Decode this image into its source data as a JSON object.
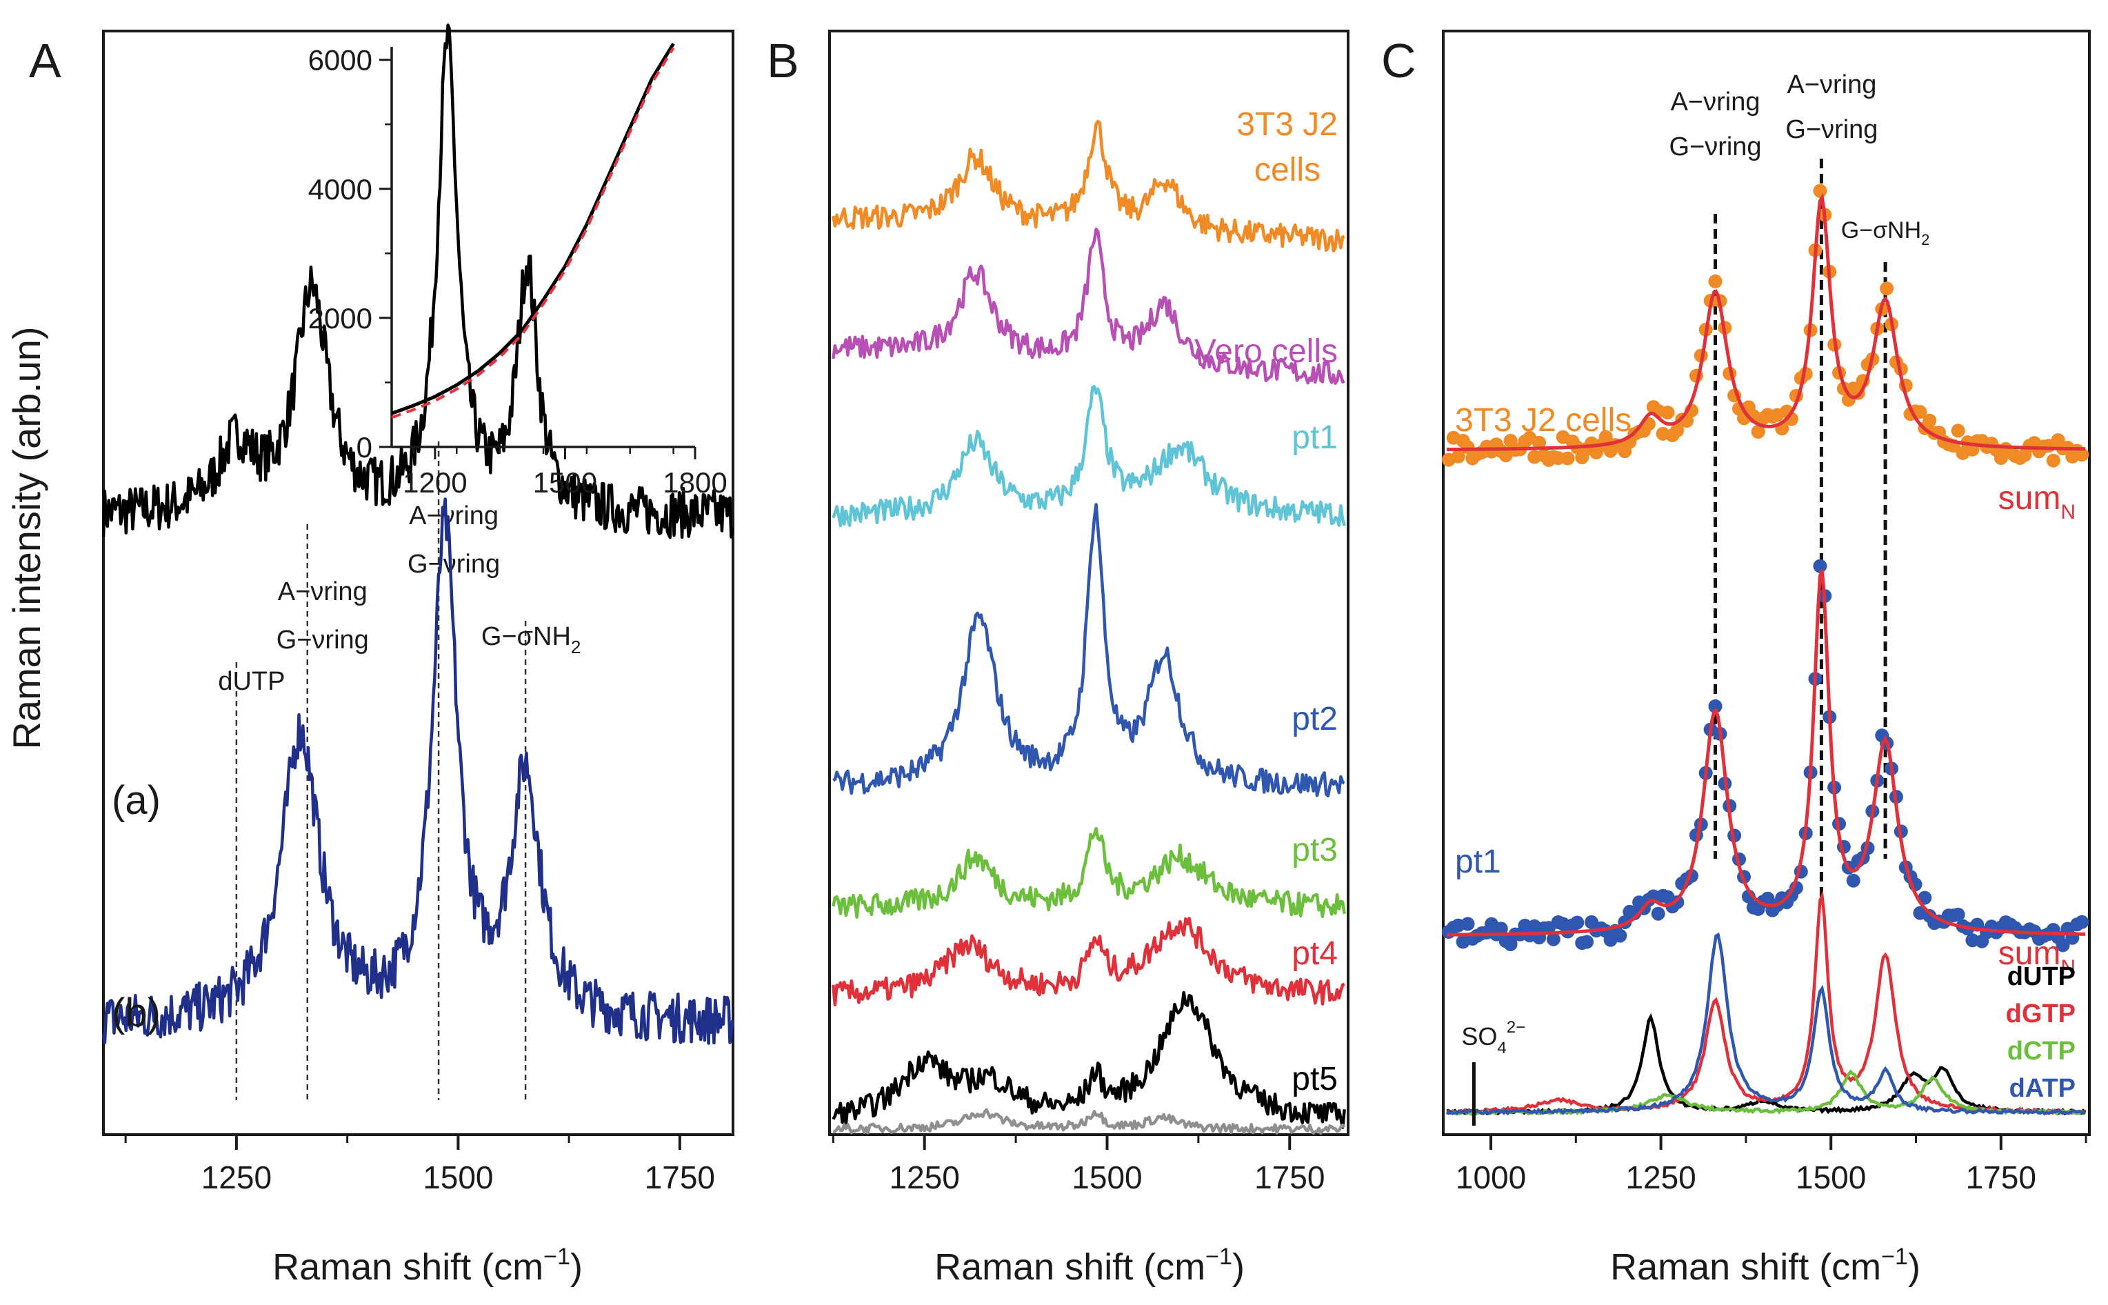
{
  "figure": {
    "y_axis_label": "Raman intensity (arb.un)",
    "x_axis_label_main": "Raman shift (cm",
    "x_axis_label_sup": "−1",
    "x_axis_label_close": ")"
  },
  "chart_data": [
    {
      "panel": "A",
      "type": "line",
      "xlim": [
        1100,
        1810
      ],
      "xticks": [
        1250,
        1500,
        1750
      ],
      "xtick_labels": [
        "1250",
        "1500",
        "1750"
      ],
      "series": [
        {
          "name": "(a)",
          "color": "#000000",
          "offset": 0.56,
          "peaks": [
            [
              1250,
              0.06,
              25
            ],
            [
              1335,
              0.2,
              22
            ],
            [
              1488,
              0.42,
              14
            ],
            [
              1578,
              0.22,
              14
            ]
          ],
          "slope": 0.0
        },
        {
          "name": "(b)",
          "color": "#1f2f8a",
          "offset": 0.1,
          "peaks": [
            [
              1322,
              0.26,
              26
            ],
            [
              1485,
              0.44,
              17
            ],
            [
              1576,
              0.22,
              20
            ]
          ],
          "slope": 0.0
        }
      ],
      "series_labels": [
        "(a)",
        "(b)"
      ],
      "annotations": [
        {
          "x": 1250,
          "line1": "dUTP",
          "line2": ""
        },
        {
          "x": 1330,
          "line1": "A−νring",
          "line2": "G−νring"
        },
        {
          "x": 1478,
          "line1": "A−νring",
          "line2": "G−νring"
        },
        {
          "x": 1576,
          "line1": "G−σNH",
          "sub": "2"
        }
      ],
      "inset": {
        "xlim": [
          1100,
          1800
        ],
        "ylim": [
          0,
          6200
        ],
        "xticks": [
          1200,
          1500,
          1800
        ],
        "xtick_labels": [
          "1200",
          "1500",
          "1800"
        ],
        "yticks": [
          0,
          2000,
          4000,
          6000
        ],
        "ytick_labels": [
          "0",
          "2000",
          "4000",
          "6000"
        ],
        "curve_x": [
          1100,
          1150,
          1200,
          1250,
          1300,
          1350,
          1400,
          1450,
          1500,
          1550,
          1600,
          1650,
          1700,
          1750
        ],
        "curve_y": [
          520,
          640,
          780,
          960,
          1180,
          1460,
          1800,
          2280,
          2800,
          3450,
          4200,
          4950,
          5700,
          6250
        ],
        "fit_color": "#e8323c",
        "data_color": "#000000"
      }
    },
    {
      "panel": "B",
      "type": "line",
      "xlim": [
        1120,
        1830
      ],
      "xticks": [
        1250,
        1500,
        1750
      ],
      "xtick_labels": [
        "1250",
        "1500",
        "1750"
      ],
      "series": [
        {
          "name": "3T3 J2",
          "name2": "cells",
          "color": "#f08a24",
          "offset": 0.83,
          "peaks": [
            [
              1320,
              0.06,
              30
            ],
            [
              1486,
              0.09,
              16
            ],
            [
              1580,
              0.045,
              25
            ]
          ],
          "slope": -0.02
        },
        {
          "name": "Vero cells",
          "color": "#b84fb4",
          "offset": 0.712,
          "peaks": [
            [
              1320,
              0.075,
              28
            ],
            [
              1484,
              0.11,
              14
            ],
            [
              1578,
              0.055,
              25
            ]
          ],
          "slope": -0.025
        },
        {
          "name": "pt1",
          "color": "#5ec4d6",
          "offset": 0.56,
          "peaks": [
            [
              1320,
              0.065,
              30
            ],
            [
              1484,
              0.105,
              16
            ],
            [
              1600,
              0.06,
              45
            ]
          ],
          "slope": 0.0
        },
        {
          "name": "pt2",
          "color": "#2f57b0",
          "offset": 0.315,
          "peaks": [
            [
              1325,
              0.15,
              28
            ],
            [
              1484,
              0.24,
              14
            ],
            [
              1578,
              0.115,
              26
            ]
          ],
          "slope": 0.0
        },
        {
          "name": "pt3",
          "color": "#6cbf3c",
          "offset": 0.205,
          "peaks": [
            [
              1320,
              0.045,
              30
            ],
            [
              1484,
              0.065,
              14
            ],
            [
              1600,
              0.045,
              45
            ]
          ],
          "slope": 0.0
        },
        {
          "name": "pt4",
          "color": "#e0303a",
          "offset": 0.125,
          "peaks": [
            [
              1310,
              0.045,
              40
            ],
            [
              1484,
              0.04,
              14
            ],
            [
              1600,
              0.065,
              50
            ]
          ],
          "slope": 0.0
        },
        {
          "name": "pt5",
          "color": "#000000",
          "offset": 0.012,
          "peaks": [
            [
              1250,
              0.05,
              40
            ],
            [
              1340,
              0.03,
              40
            ],
            [
              1484,
              0.03,
              12
            ],
            [
              1610,
              0.11,
              45
            ]
          ],
          "slope": 0.0
        },
        {
          "name": "",
          "color": "#8f8f8f",
          "offset": 0.005,
          "peaks": [
            [
              1330,
              0.015,
              30
            ],
            [
              1484,
              0.015,
              12
            ],
            [
              1575,
              0.01,
              25
            ]
          ],
          "slope": 0.0
        }
      ]
    },
    {
      "panel": "C",
      "type": "line",
      "xlim": [
        930,
        1880
      ],
      "xticks": [
        1000,
        1250,
        1500,
        1750
      ],
      "xtick_labels": [
        "1000",
        "1250",
        "1500",
        "1750"
      ],
      "peak_lines": [
        1330,
        1486,
        1580
      ],
      "annotations": [
        {
          "x": 1330,
          "line1": "A−νring",
          "line2": "G−νring"
        },
        {
          "x": 1486,
          "line1": "A−νring",
          "line2": "G−νring"
        },
        {
          "x": 1580,
          "line1": "G−σNH",
          "sub": "2"
        }
      ],
      "upper": [
        {
          "name": "3T3 J2 cells",
          "color": "#f08a24",
          "fit_label": "sum",
          "fit_sub": "N",
          "offset": 0.62,
          "peaks": [
            [
              1235,
              0.025,
              20
            ],
            [
              1330,
              0.14,
              22
            ],
            [
              1486,
              0.22,
              16
            ],
            [
              1580,
              0.13,
              22
            ]
          ]
        },
        {
          "name": "pt1",
          "color": "#2f57b0",
          "fit_label": "sum",
          "fit_sub": "N",
          "offset": 0.18,
          "peaks": [
            [
              1235,
              0.02,
              20
            ],
            [
              1330,
              0.2,
              22
            ],
            [
              1486,
              0.32,
              14
            ],
            [
              1580,
              0.17,
              22
            ]
          ]
        }
      ],
      "components": [
        {
          "name": "dUTP",
          "color": "#000000",
          "peaks": [
            [
              1235,
              0.085,
              15
            ],
            [
              1400,
              0.01,
              25
            ],
            [
              1620,
              0.03,
              22
            ],
            [
              1665,
              0.035,
              18
            ]
          ]
        },
        {
          "name": "dGTP",
          "color": "#e0303a",
          "peaks": [
            [
              1100,
              0.01,
              40
            ],
            [
              1330,
              0.1,
              18
            ],
            [
              1486,
              0.19,
              12
            ],
            [
              1580,
              0.14,
              18
            ]
          ]
        },
        {
          "name": "dCTP",
          "color": "#6cbf3c",
          "peaks": [
            [
              1260,
              0.015,
              35
            ],
            [
              1530,
              0.035,
              18
            ],
            [
              1650,
              0.03,
              20
            ]
          ]
        },
        {
          "name": "dATP",
          "color": "#2f57b0",
          "peaks": [
            [
              1333,
              0.16,
              18
            ],
            [
              1486,
              0.11,
              14
            ],
            [
              1580,
              0.035,
              15
            ]
          ]
        }
      ],
      "sulfate": {
        "x": 975,
        "label": "SO",
        "sub": "4",
        "sup": "2−"
      }
    }
  ],
  "panel_letters": [
    "A",
    "B",
    "C"
  ]
}
